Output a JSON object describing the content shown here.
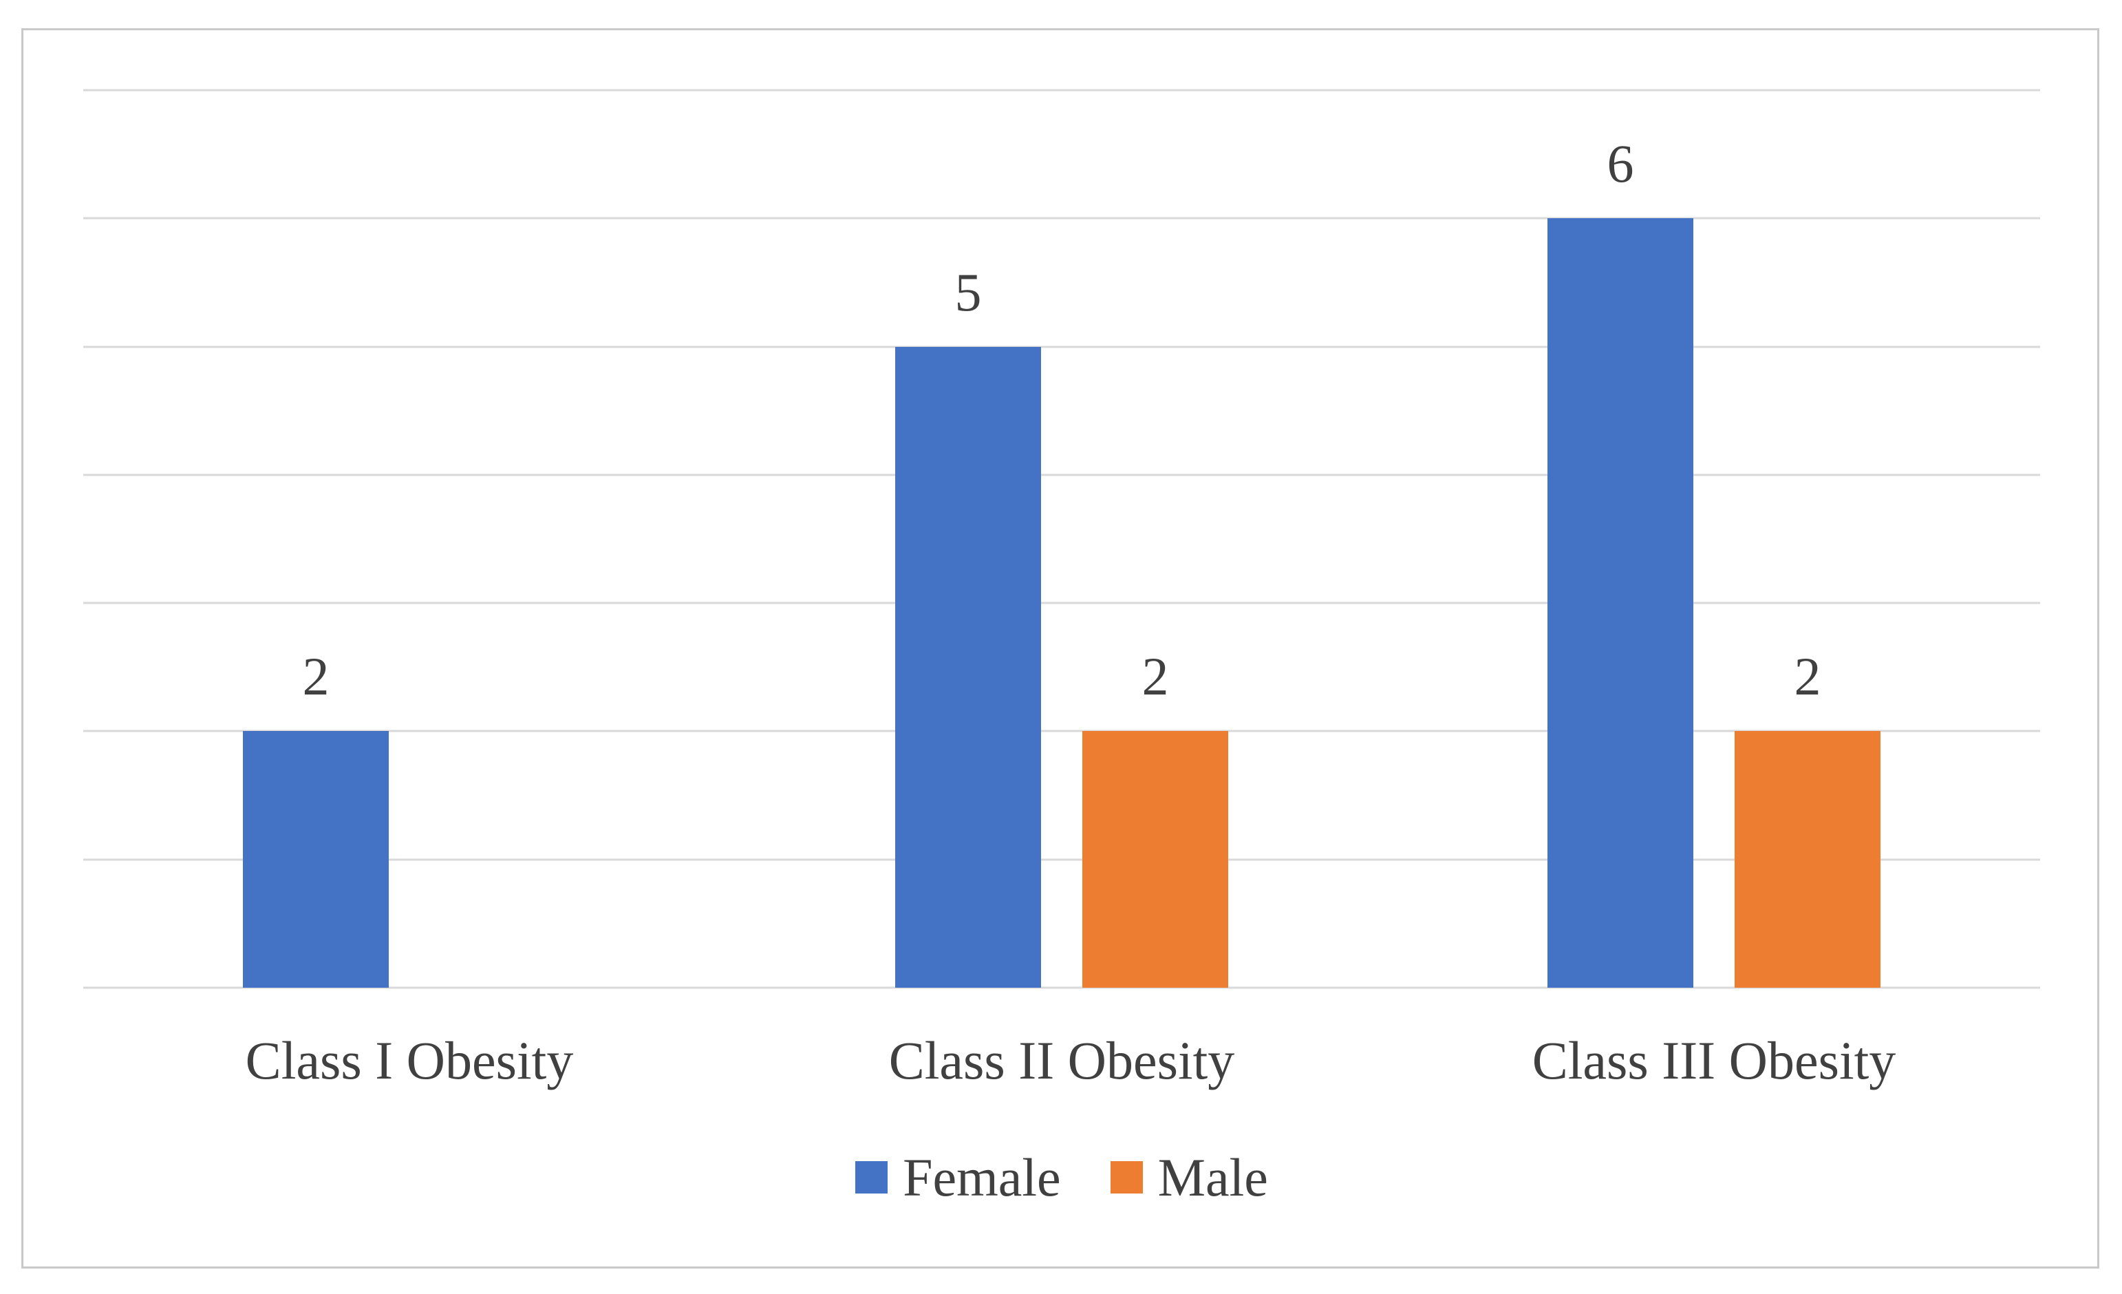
{
  "chart_data": {
    "type": "bar",
    "title": "",
    "xlabel": "",
    "ylabel": "",
    "categories": [
      "Class I Obesity",
      "Class II Obesity",
      "Class III Obesity"
    ],
    "series": [
      {
        "name": "Female",
        "color": "#4472C4",
        "values": [
          2,
          5,
          6
        ]
      },
      {
        "name": "Male",
        "color": "#ED7D31",
        "values": [
          0,
          2,
          2
        ]
      }
    ],
    "data_labels_shown": [
      "2",
      "5",
      "6",
      "2",
      "2"
    ],
    "ylim": [
      0,
      7
    ],
    "y_major_unit": 1,
    "y_tick_labels_shown": false,
    "grid": "horizontal",
    "legend_position": "bottom",
    "legend_items": [
      "Female",
      "Male"
    ]
  },
  "style": {
    "gridline_color": "#D9D9D9",
    "frame_border_color": "#C9C9C9",
    "background_color": "#FFFFFF",
    "text_color": "#404040"
  }
}
